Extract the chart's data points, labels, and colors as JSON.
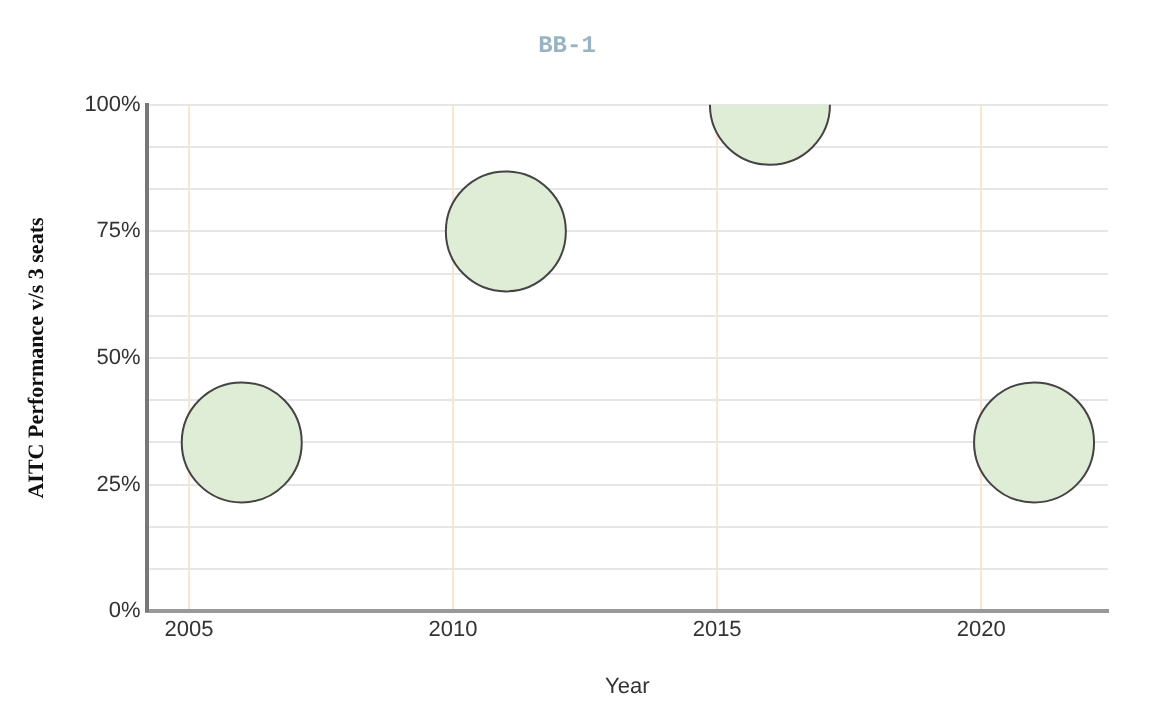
{
  "chart_data": {
    "type": "bubble",
    "title": "BB-1",
    "xlabel": "Year",
    "ylabel": "AITC Performance v/s 3 seats",
    "x": [
      2006,
      2011,
      2016,
      2021
    ],
    "series": [
      {
        "color": "#dfecd6",
        "values": [
          33.33,
          75,
          100,
          33.33
        ],
        "sizes": [
          1,
          1,
          1,
          1
        ]
      }
    ],
    "xlim": [
      2004.2,
      2022.4
    ],
    "xticks": [
      2005,
      2010,
      2015,
      2020
    ],
    "ylim": [
      0,
      100
    ],
    "yticks": [
      {
        "value": 0,
        "label": "0%"
      },
      {
        "value": 8.33,
        "label": null
      },
      {
        "value": 16.67,
        "label": null
      },
      {
        "value": 25,
        "label": "25%"
      },
      {
        "value": 33.33,
        "label": null
      },
      {
        "value": 41.67,
        "label": null
      },
      {
        "value": 50,
        "label": "50%"
      },
      {
        "value": 58.33,
        "label": null
      },
      {
        "value": 66.67,
        "label": null
      },
      {
        "value": 75,
        "label": "75%"
      },
      {
        "value": 83.33,
        "label": null
      },
      {
        "value": 91.67,
        "label": null
      },
      {
        "value": 100,
        "label": "100%"
      }
    ],
    "grid": true,
    "legend": false
  }
}
